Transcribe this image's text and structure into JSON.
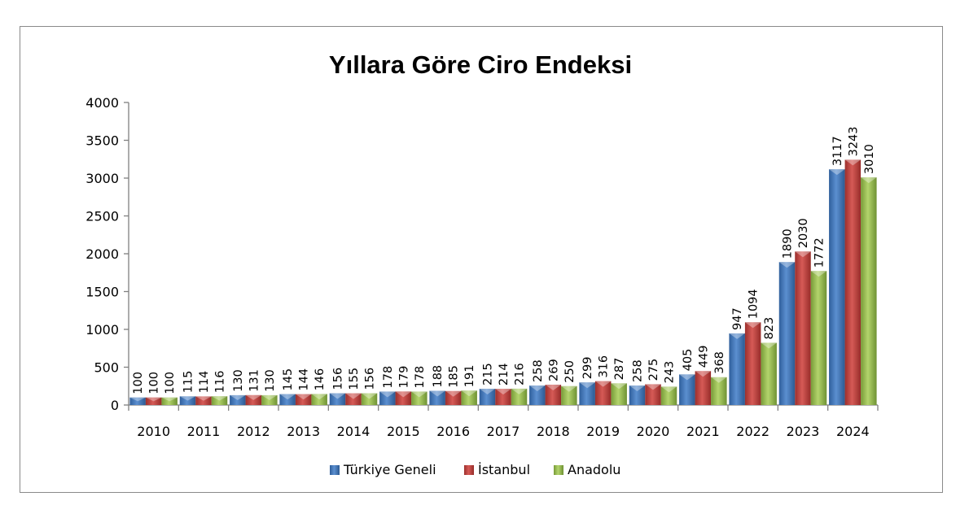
{
  "chart_data": {
    "type": "bar",
    "title": "Yıllara Göre Ciro Endeksi",
    "xlabel": "",
    "ylabel": "",
    "ylim": [
      0,
      4000
    ],
    "yticks": [
      0,
      500,
      1000,
      1500,
      2000,
      2500,
      3000,
      3500,
      4000
    ],
    "grid": false,
    "legend_position": "bottom",
    "categories": [
      "2010",
      "2011",
      "2012",
      "2013",
      "2014",
      "2015",
      "2016",
      "2017",
      "2018",
      "2019",
      "2020",
      "2021",
      "2022",
      "2023",
      "2024"
    ],
    "series": [
      {
        "name": "Türkiye Geneli",
        "color": "#4a7ebb",
        "values": [
          100,
          115,
          130,
          145,
          156,
          178,
          188,
          215,
          258,
          299,
          258,
          405,
          947,
          1890,
          3117
        ]
      },
      {
        "name": "İstanbul",
        "color": "#be4b48",
        "values": [
          100,
          114,
          131,
          144,
          155,
          179,
          185,
          214,
          269,
          316,
          275,
          449,
          1094,
          2030,
          3243
        ]
      },
      {
        "name": "Anadolu",
        "color": "#98b954",
        "values": [
          100,
          116,
          130,
          146,
          156,
          178,
          191,
          216,
          250,
          287,
          243,
          368,
          823,
          1772,
          3010
        ]
      }
    ]
  }
}
